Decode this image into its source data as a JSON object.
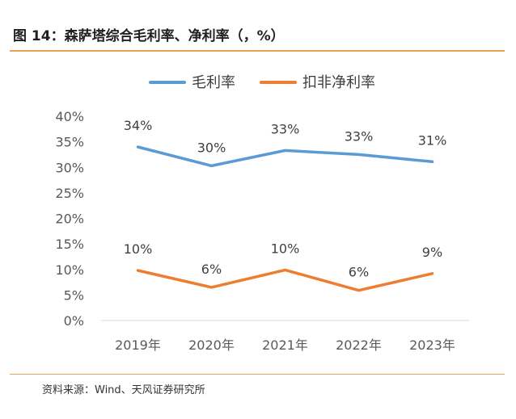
{
  "figure": {
    "title": "图 14：森萨塔综合毛利率、净利率（，%）",
    "source": "资料来源：Wind、天风证券研究所"
  },
  "colors": {
    "gross": "#5b9bd5",
    "net": "#ed7d31",
    "rule": "#e8a25a",
    "axis_text": "#595959"
  },
  "chart_data": {
    "type": "line",
    "categories": [
      "2019年",
      "2020年",
      "2021年",
      "2022年",
      "2023年"
    ],
    "series": [
      {
        "name": "毛利率",
        "values": [
          34,
          30.3,
          33.3,
          32.5,
          31.1
        ],
        "labels": [
          "34%",
          "30%",
          "33%",
          "33%",
          "31%"
        ]
      },
      {
        "name": "扣非净利率",
        "values": [
          9.8,
          6.5,
          9.9,
          5.9,
          9.2
        ],
        "labels": [
          "10%",
          "6%",
          "10%",
          "6%",
          "9%"
        ]
      }
    ],
    "ylim": [
      0,
      40
    ],
    "yticks": [
      0,
      5,
      10,
      15,
      20,
      25,
      30,
      35,
      40
    ],
    "ytick_labels": [
      "0%",
      "5%",
      "10%",
      "15%",
      "20%",
      "25%",
      "30%",
      "35%",
      "40%"
    ],
    "grid": false,
    "legend_position": "top"
  }
}
